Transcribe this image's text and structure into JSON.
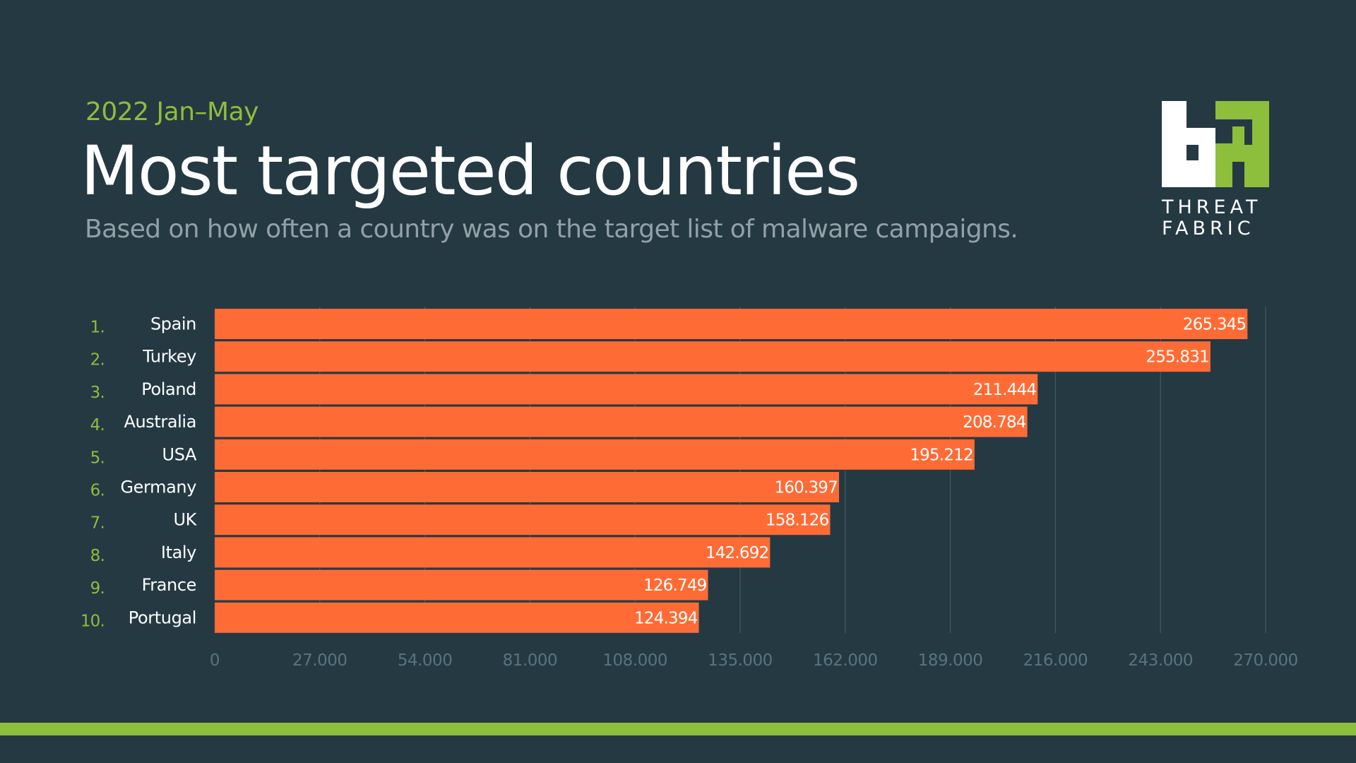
{
  "header": {
    "period": "2022 Jan–May",
    "title": "Most targeted countries",
    "description": "Based on how often a country was on the target list of malware campaigns."
  },
  "logo": {
    "line1": "THREAT",
    "line2": "FABRIC",
    "colors": {
      "white": "#ffffff",
      "green": "#8dbe3c"
    }
  },
  "colors": {
    "background": "#253943",
    "bar": "#ff6b35",
    "accent": "#8dbe3c",
    "grid": "#3f5b63",
    "tick_label": "#56757e",
    "country_label": "#ffffff",
    "rank_label": "#8dbe3c",
    "value_label": "#ffffff"
  },
  "chart_data": {
    "type": "bar",
    "orientation": "horizontal",
    "categories": [
      "Spain",
      "Turkey",
      "Poland",
      "Australia",
      "USA",
      "Germany",
      "UK",
      "Italy",
      "France",
      "Portugal"
    ],
    "ranks": [
      "1.",
      "2.",
      "3.",
      "4.",
      "5.",
      "6.",
      "7.",
      "8.",
      "9.",
      "10."
    ],
    "values": [
      265345,
      255831,
      211444,
      208784,
      195212,
      160397,
      158126,
      142692,
      126749,
      124394
    ],
    "value_labels": [
      "265.345",
      "255.831",
      "211.444",
      "208.784",
      "195.212",
      "160.397",
      "158.126",
      "142.692",
      "126.749",
      "124.394"
    ],
    "xlim": [
      0,
      270000
    ],
    "xticks": [
      0,
      27000,
      54000,
      81000,
      108000,
      135000,
      162000,
      189000,
      216000,
      243000,
      270000
    ],
    "xtick_labels": [
      "0",
      "27.000",
      "54.000",
      "81.000",
      "108.000",
      "135.000",
      "162.000",
      "189.000",
      "216.000",
      "243.000",
      "270.000"
    ],
    "grid": true
  }
}
